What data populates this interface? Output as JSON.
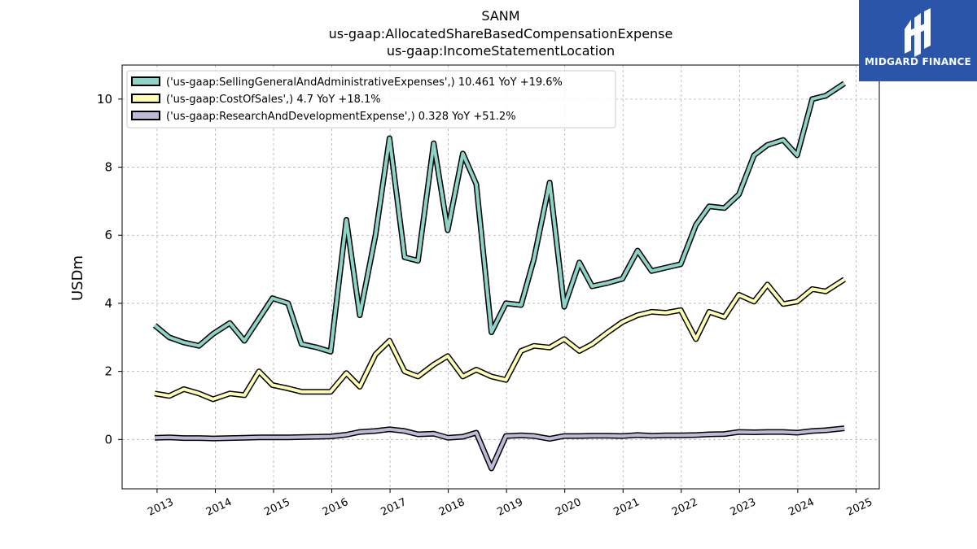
{
  "titles": [
    "SANM",
    "us-gaap:AllocatedShareBasedCompensationExpense",
    "us-gaap:IncomeStatementLocation"
  ],
  "logo": {
    "text": "MIDGARD FINANCE",
    "color": "#2a55a8"
  },
  "chart_data": {
    "type": "line",
    "ylabel": "USDm",
    "xlabel": "",
    "ylim": [
      -1.45,
      11.0
    ],
    "xlim": [
      2012.4,
      2025.4
    ],
    "x_ticks": [
      "2013",
      "2014",
      "2015",
      "2016",
      "2017",
      "2018",
      "2019",
      "2020",
      "2021",
      "2022",
      "2023",
      "2024",
      "2025"
    ],
    "y_ticks": [
      "0",
      "2",
      "4",
      "6",
      "8",
      "10"
    ],
    "grid": true,
    "legend_position": "top-left",
    "series": [
      {
        "name": "('us-gaap:SellingGeneralAndAdministrativeExpenses',) 10.461 YoY +19.6%",
        "color": "#8dd3c7",
        "x": [
          2012.96,
          2013.21,
          2013.46,
          2013.72,
          2013.96,
          2014.25,
          2014.5,
          2014.75,
          2014.98,
          2015.25,
          2015.48,
          2015.75,
          2015.98,
          2016.25,
          2016.48,
          2016.75,
          2016.99,
          2017.25,
          2017.48,
          2017.75,
          2017.99,
          2018.25,
          2018.48,
          2018.74,
          2018.99,
          2019.25,
          2019.47,
          2019.74,
          2019.99,
          2020.25,
          2020.47,
          2020.74,
          2020.99,
          2021.25,
          2021.49,
          2021.74,
          2021.99,
          2022.25,
          2022.48,
          2022.74,
          2022.99,
          2023.25,
          2023.48,
          2023.75,
          2023.99,
          2024.25,
          2024.48,
          2024.8
        ],
        "values": [
          3.35,
          3.0,
          2.85,
          2.75,
          3.1,
          3.42,
          2.9,
          3.55,
          4.15,
          4.0,
          2.8,
          2.7,
          2.58,
          6.45,
          3.65,
          6.0,
          8.85,
          5.35,
          5.25,
          8.7,
          6.15,
          8.4,
          7.5,
          3.15,
          4.0,
          3.95,
          5.3,
          7.55,
          3.9,
          5.2,
          4.5,
          4.6,
          4.72,
          5.55,
          4.95,
          5.05,
          5.15,
          6.3,
          6.85,
          6.8,
          7.2,
          8.35,
          8.65,
          8.8,
          8.35,
          10.0,
          10.1,
          10.461
        ]
      },
      {
        "name": "('us-gaap:CostOfSales',) 4.7 YoY +18.1%",
        "color": "#ffffb3",
        "x": [
          2012.96,
          2013.21,
          2013.46,
          2013.72,
          2013.96,
          2014.25,
          2014.5,
          2014.75,
          2014.98,
          2015.25,
          2015.48,
          2015.75,
          2015.98,
          2016.25,
          2016.48,
          2016.75,
          2016.99,
          2017.25,
          2017.48,
          2017.75,
          2017.99,
          2018.25,
          2018.48,
          2018.74,
          2018.99,
          2019.25,
          2019.47,
          2019.74,
          2019.99,
          2020.25,
          2020.47,
          2020.74,
          2020.99,
          2021.25,
          2021.49,
          2021.74,
          2021.99,
          2022.25,
          2022.48,
          2022.74,
          2022.99,
          2023.25,
          2023.48,
          2023.75,
          2023.99,
          2024.25,
          2024.48,
          2024.8
        ],
        "values": [
          1.35,
          1.28,
          1.48,
          1.35,
          1.18,
          1.35,
          1.3,
          2.0,
          1.6,
          1.5,
          1.4,
          1.4,
          1.4,
          1.95,
          1.55,
          2.5,
          2.9,
          2.0,
          1.85,
          2.2,
          2.45,
          1.85,
          2.05,
          1.85,
          1.75,
          2.6,
          2.75,
          2.7,
          2.95,
          2.6,
          2.8,
          3.15,
          3.45,
          3.65,
          3.75,
          3.72,
          3.8,
          2.95,
          3.75,
          3.6,
          4.25,
          4.05,
          4.55,
          3.98,
          4.05,
          4.42,
          4.35,
          4.7
        ]
      },
      {
        "name": "('us-gaap:ResearchAndDevelopmentExpense',) 0.328 YoY +51.2%",
        "color": "#bebada",
        "x": [
          2012.96,
          2013.21,
          2013.46,
          2013.72,
          2013.96,
          2014.25,
          2014.5,
          2014.75,
          2014.98,
          2015.25,
          2015.48,
          2015.75,
          2015.98,
          2016.25,
          2016.48,
          2016.75,
          2016.99,
          2017.25,
          2017.48,
          2017.75,
          2017.99,
          2018.25,
          2018.48,
          2018.74,
          2018.99,
          2019.25,
          2019.47,
          2019.74,
          2019.99,
          2020.25,
          2020.47,
          2020.74,
          2020.99,
          2021.25,
          2021.49,
          2021.74,
          2021.99,
          2022.25,
          2022.48,
          2022.74,
          2022.99,
          2023.25,
          2023.48,
          2023.75,
          2023.99,
          2024.25,
          2024.48,
          2024.8
        ],
        "values": [
          0.05,
          0.06,
          0.04,
          0.04,
          0.03,
          0.04,
          0.05,
          0.06,
          0.06,
          0.06,
          0.07,
          0.08,
          0.09,
          0.14,
          0.22,
          0.25,
          0.3,
          0.25,
          0.15,
          0.17,
          0.05,
          0.08,
          0.2,
          -0.85,
          0.1,
          0.12,
          0.1,
          0.02,
          0.1,
          0.1,
          0.11,
          0.11,
          0.1,
          0.13,
          0.11,
          0.12,
          0.12,
          0.13,
          0.15,
          0.16,
          0.22,
          0.21,
          0.22,
          0.22,
          0.2,
          0.25,
          0.27,
          0.328
        ]
      }
    ]
  }
}
